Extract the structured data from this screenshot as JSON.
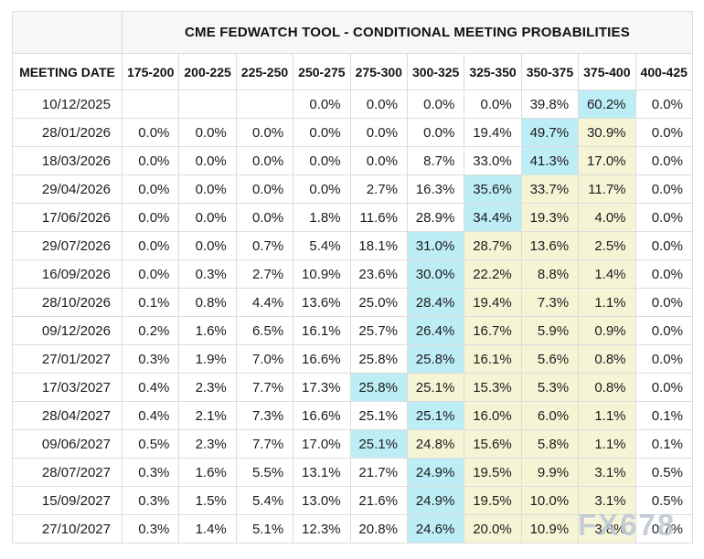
{
  "watermark": "FX678",
  "colors": {
    "highlight_cyan": "#bdedf5",
    "highlight_yellow": "#f5f5d6",
    "border": "#dcdcdc",
    "title_row_bg": "#f7f7f7"
  },
  "chart_data": {
    "type": "table",
    "title": "CME FEDWATCH TOOL - CONDITIONAL MEETING PROBABILITIES",
    "columns": [
      "MEETING DATE",
      "175-200",
      "200-225",
      "225-250",
      "250-275",
      "275-300",
      "300-325",
      "325-350",
      "350-375",
      "375-400",
      "400-425"
    ],
    "rows": [
      {
        "date": "10/12/2025",
        "values": [
          "",
          "",
          "",
          "0.0%",
          "0.0%",
          "0.0%",
          "0.0%",
          "39.8%",
          "60.2%",
          "0.0%"
        ],
        "highlights": [
          "",
          "",
          "",
          "",
          "",
          "",
          "",
          "",
          "cyan",
          ""
        ]
      },
      {
        "date": "28/01/2026",
        "values": [
          "0.0%",
          "0.0%",
          "0.0%",
          "0.0%",
          "0.0%",
          "0.0%",
          "19.4%",
          "49.7%",
          "30.9%",
          "0.0%"
        ],
        "highlights": [
          "",
          "",
          "",
          "",
          "",
          "",
          "",
          "cyan",
          "yellow",
          ""
        ]
      },
      {
        "date": "18/03/2026",
        "values": [
          "0.0%",
          "0.0%",
          "0.0%",
          "0.0%",
          "0.0%",
          "8.7%",
          "33.0%",
          "41.3%",
          "17.0%",
          "0.0%"
        ],
        "highlights": [
          "",
          "",
          "",
          "",
          "",
          "",
          "",
          "cyan",
          "yellow",
          ""
        ]
      },
      {
        "date": "29/04/2026",
        "values": [
          "0.0%",
          "0.0%",
          "0.0%",
          "0.0%",
          "2.7%",
          "16.3%",
          "35.6%",
          "33.7%",
          "11.7%",
          "0.0%"
        ],
        "highlights": [
          "",
          "",
          "",
          "",
          "",
          "",
          "cyan",
          "yellow",
          "yellow",
          ""
        ]
      },
      {
        "date": "17/06/2026",
        "values": [
          "0.0%",
          "0.0%",
          "0.0%",
          "1.8%",
          "11.6%",
          "28.9%",
          "34.4%",
          "19.3%",
          "4.0%",
          "0.0%"
        ],
        "highlights": [
          "",
          "",
          "",
          "",
          "",
          "",
          "cyan",
          "yellow",
          "yellow",
          ""
        ]
      },
      {
        "date": "29/07/2026",
        "values": [
          "0.0%",
          "0.0%",
          "0.7%",
          "5.4%",
          "18.1%",
          "31.0%",
          "28.7%",
          "13.6%",
          "2.5%",
          "0.0%"
        ],
        "highlights": [
          "",
          "",
          "",
          "",
          "",
          "cyan",
          "yellow",
          "yellow",
          "yellow",
          ""
        ]
      },
      {
        "date": "16/09/2026",
        "values": [
          "0.0%",
          "0.3%",
          "2.7%",
          "10.9%",
          "23.6%",
          "30.0%",
          "22.2%",
          "8.8%",
          "1.4%",
          "0.0%"
        ],
        "highlights": [
          "",
          "",
          "",
          "",
          "",
          "cyan",
          "yellow",
          "yellow",
          "yellow",
          ""
        ]
      },
      {
        "date": "28/10/2026",
        "values": [
          "0.1%",
          "0.8%",
          "4.4%",
          "13.6%",
          "25.0%",
          "28.4%",
          "19.4%",
          "7.3%",
          "1.1%",
          "0.0%"
        ],
        "highlights": [
          "",
          "",
          "",
          "",
          "",
          "cyan",
          "yellow",
          "yellow",
          "yellow",
          ""
        ]
      },
      {
        "date": "09/12/2026",
        "values": [
          "0.2%",
          "1.6%",
          "6.5%",
          "16.1%",
          "25.7%",
          "26.4%",
          "16.7%",
          "5.9%",
          "0.9%",
          "0.0%"
        ],
        "highlights": [
          "",
          "",
          "",
          "",
          "",
          "cyan",
          "yellow",
          "yellow",
          "yellow",
          ""
        ]
      },
      {
        "date": "27/01/2027",
        "values": [
          "0.3%",
          "1.9%",
          "7.0%",
          "16.6%",
          "25.8%",
          "25.8%",
          "16.1%",
          "5.6%",
          "0.8%",
          "0.0%"
        ],
        "highlights": [
          "",
          "",
          "",
          "",
          "",
          "cyan",
          "yellow",
          "yellow",
          "yellow",
          ""
        ]
      },
      {
        "date": "17/03/2027",
        "values": [
          "0.4%",
          "2.3%",
          "7.7%",
          "17.3%",
          "25.8%",
          "25.1%",
          "15.3%",
          "5.3%",
          "0.8%",
          "0.0%"
        ],
        "highlights": [
          "",
          "",
          "",
          "",
          "cyan",
          "yellow",
          "yellow",
          "yellow",
          "yellow",
          ""
        ]
      },
      {
        "date": "28/04/2027",
        "values": [
          "0.4%",
          "2.1%",
          "7.3%",
          "16.6%",
          "25.1%",
          "25.1%",
          "16.0%",
          "6.0%",
          "1.1%",
          "0.1%"
        ],
        "highlights": [
          "",
          "",
          "",
          "",
          "",
          "cyan",
          "yellow",
          "yellow",
          "yellow",
          ""
        ]
      },
      {
        "date": "09/06/2027",
        "values": [
          "0.5%",
          "2.3%",
          "7.7%",
          "17.0%",
          "25.1%",
          "24.8%",
          "15.6%",
          "5.8%",
          "1.1%",
          "0.1%"
        ],
        "highlights": [
          "",
          "",
          "",
          "",
          "cyan",
          "yellow",
          "yellow",
          "yellow",
          "yellow",
          ""
        ]
      },
      {
        "date": "28/07/2027",
        "values": [
          "0.3%",
          "1.6%",
          "5.5%",
          "13.1%",
          "21.7%",
          "24.9%",
          "19.5%",
          "9.9%",
          "3.1%",
          "0.5%"
        ],
        "highlights": [
          "",
          "",
          "",
          "",
          "",
          "cyan",
          "yellow",
          "yellow",
          "yellow",
          ""
        ]
      },
      {
        "date": "15/09/2027",
        "values": [
          "0.3%",
          "1.5%",
          "5.4%",
          "13.0%",
          "21.6%",
          "24.9%",
          "19.5%",
          "10.0%",
          "3.1%",
          "0.5%"
        ],
        "highlights": [
          "",
          "",
          "",
          "",
          "",
          "cyan",
          "yellow",
          "yellow",
          "yellow",
          ""
        ]
      },
      {
        "date": "27/10/2027",
        "values": [
          "0.3%",
          "1.4%",
          "5.1%",
          "12.3%",
          "20.8%",
          "24.6%",
          "20.0%",
          "10.9%",
          "3.8%",
          "0.7%"
        ],
        "highlights": [
          "",
          "",
          "",
          "",
          "",
          "cyan",
          "yellow",
          "yellow",
          "yellow",
          ""
        ]
      }
    ]
  }
}
